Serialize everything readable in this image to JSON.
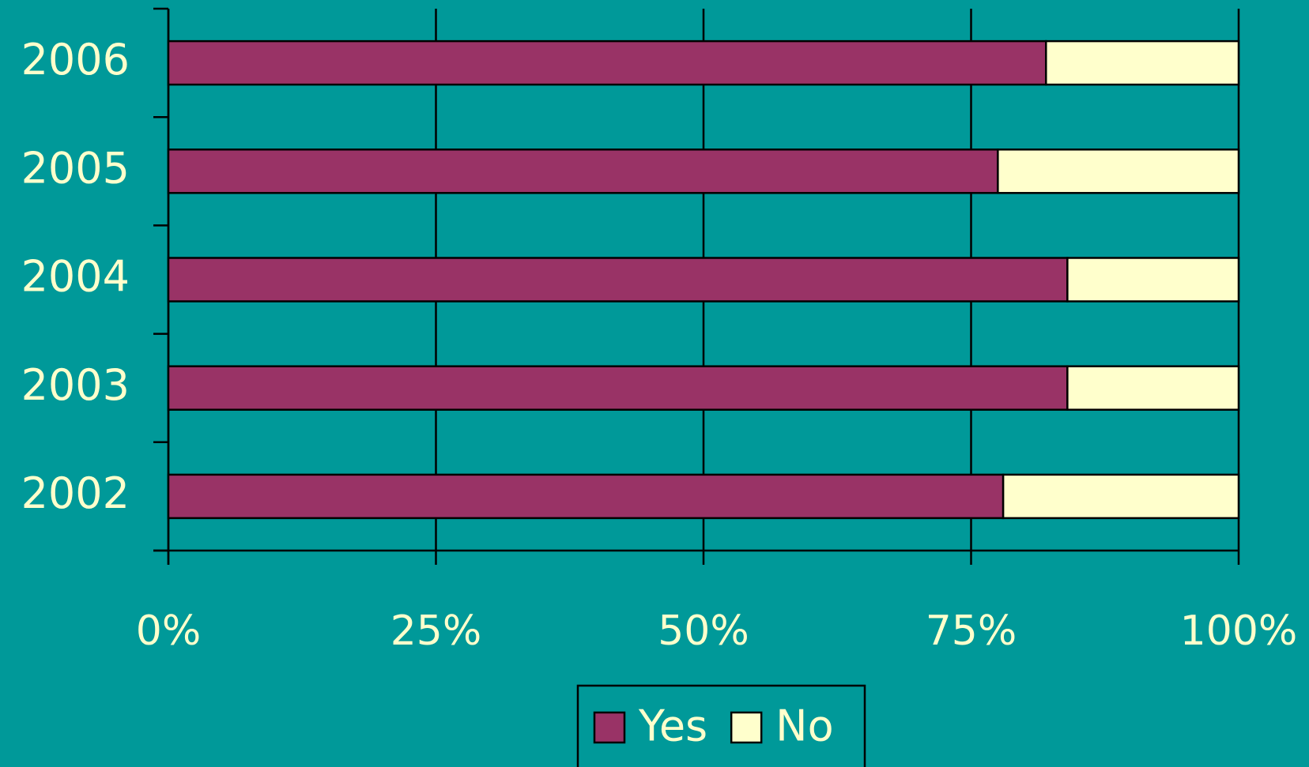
{
  "chart_data": {
    "type": "bar",
    "orientation": "horizontal",
    "stacked": true,
    "categories": [
      "2002",
      "2003",
      "2004",
      "2005",
      "2006"
    ],
    "series": [
      {
        "name": "Yes",
        "color": "#993366",
        "values": [
          78,
          84,
          84,
          77.5,
          82
        ]
      },
      {
        "name": "No",
        "color": "#ffffcc",
        "values": [
          22,
          16,
          16,
          22.5,
          18
        ]
      }
    ],
    "xlim": [
      0,
      100
    ],
    "xticks": [
      {
        "value": 0,
        "label": "0%"
      },
      {
        "value": 25,
        "label": "25%"
      },
      {
        "value": 50,
        "label": "50%"
      },
      {
        "value": 75,
        "label": "75%"
      },
      {
        "value": 100,
        "label": "100%"
      }
    ],
    "grid": true,
    "legend": "bottom"
  }
}
